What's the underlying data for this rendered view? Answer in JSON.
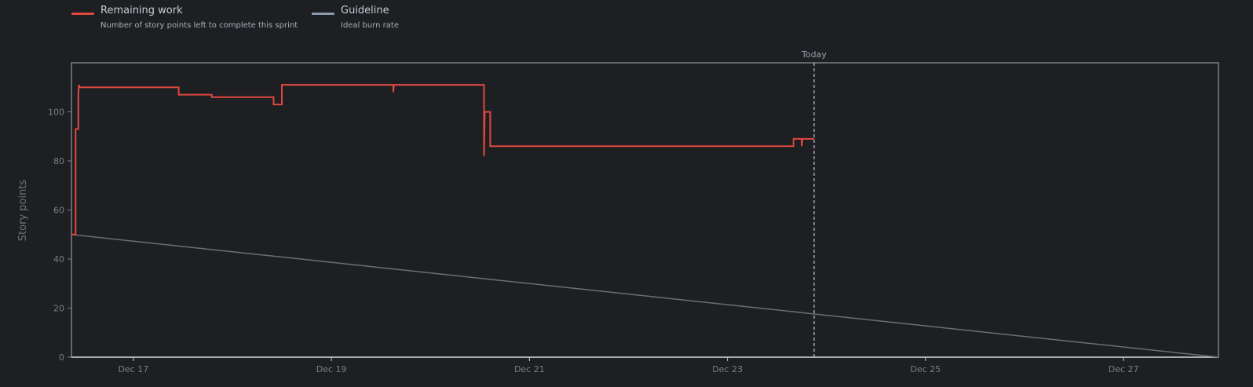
{
  "legend": {
    "remaining": {
      "title": "Remaining work",
      "subtitle": "Number of story points left to complete this sprint",
      "color": "#e0483f"
    },
    "guideline": {
      "title": "Guideline",
      "subtitle": "Ideal burn rate",
      "color": "#8a9aac"
    }
  },
  "chart_data": {
    "type": "line",
    "ylabel": "Story points",
    "ylim": [
      0,
      120
    ],
    "yticks": [
      0,
      20,
      40,
      60,
      80,
      100
    ],
    "xlim": [
      "2023-12-16T09:00",
      "2023-12-27T23:00"
    ],
    "xticks": [
      {
        "x": "2023-12-17T00:00",
        "label": "Dec 17"
      },
      {
        "x": "2023-12-19T00:00",
        "label": "Dec 19"
      },
      {
        "x": "2023-12-21T00:00",
        "label": "Dec 21"
      },
      {
        "x": "2023-12-23T00:00",
        "label": "Dec 23"
      },
      {
        "x": "2023-12-25T00:00",
        "label": "Dec 25"
      },
      {
        "x": "2023-12-27T00:00",
        "label": "Dec 27"
      }
    ],
    "today": {
      "x": "2023-12-23T21:00",
      "label": "Today"
    },
    "grid": false,
    "legend_position": "top-left",
    "series": [
      {
        "name": "Remaining work",
        "style": "step",
        "color": "#e0483f",
        "points": [
          [
            "2023-12-16T09:00",
            50
          ],
          [
            "2023-12-16T10:00",
            50
          ],
          [
            "2023-12-16T10:00",
            93
          ],
          [
            "2023-12-16T10:40",
            93
          ],
          [
            "2023-12-16T10:40",
            108
          ],
          [
            "2023-12-16T10:50",
            111
          ],
          [
            "2023-12-16T11:00",
            110
          ],
          [
            "2023-12-17T11:00",
            110
          ],
          [
            "2023-12-17T11:00",
            107
          ],
          [
            "2023-12-17T19:00",
            107
          ],
          [
            "2023-12-17T19:00",
            106
          ],
          [
            "2023-12-18T10:00",
            106
          ],
          [
            "2023-12-18T10:00",
            103
          ],
          [
            "2023-12-18T12:00",
            103
          ],
          [
            "2023-12-18T12:00",
            111
          ],
          [
            "2023-12-19T15:00",
            111
          ],
          [
            "2023-12-19T15:00",
            108
          ],
          [
            "2023-12-19T15:10",
            111
          ],
          [
            "2023-12-20T13:00",
            111
          ],
          [
            "2023-12-20T13:00",
            82
          ],
          [
            "2023-12-20T13:10",
            100
          ],
          [
            "2023-12-20T14:30",
            100
          ],
          [
            "2023-12-20T14:30",
            86
          ],
          [
            "2023-12-23T16:00",
            86
          ],
          [
            "2023-12-23T16:00",
            89
          ],
          [
            "2023-12-23T18:00",
            89
          ],
          [
            "2023-12-23T18:00",
            86
          ],
          [
            "2023-12-23T18:10",
            89
          ],
          [
            "2023-12-23T21:00",
            89
          ]
        ]
      },
      {
        "name": "Guideline",
        "style": "linear",
        "color": "#6b6f75",
        "points": [
          [
            "2023-12-16T09:00",
            50
          ],
          [
            "2023-12-27T23:00",
            0
          ]
        ]
      }
    ]
  }
}
